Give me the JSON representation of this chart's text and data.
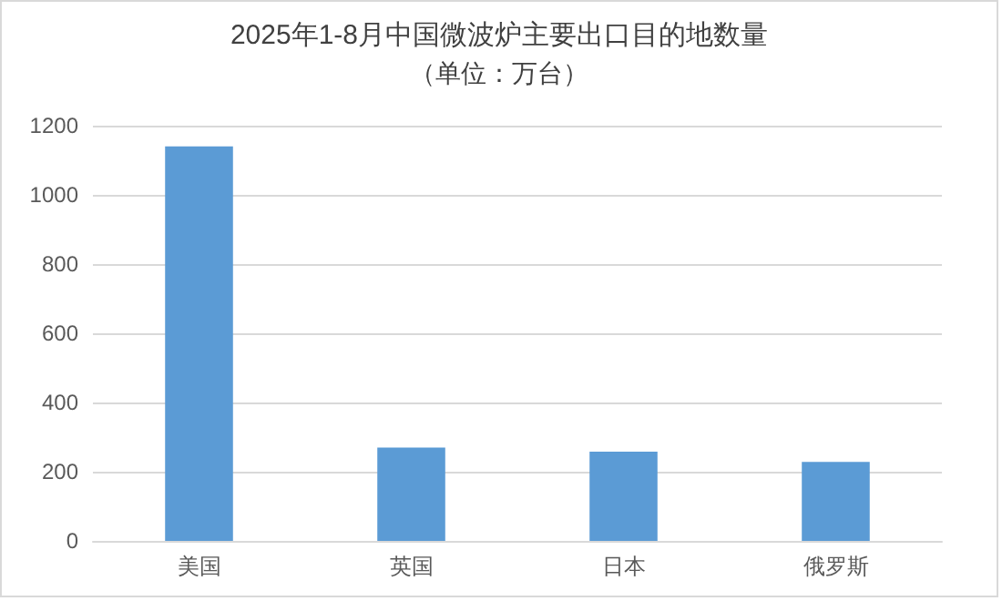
{
  "chart_data": {
    "type": "bar",
    "title": "2025年1-8月中国微波炉主要出口目的地数量",
    "subtitle": "（单位：万台）",
    "categories": [
      "美国",
      "英国",
      "日本",
      "俄罗斯"
    ],
    "values": [
      1140,
      270,
      258,
      228
    ],
    "color": "#5b9bd5",
    "ylim": [
      0,
      1200
    ],
    "yticks": [
      0,
      200,
      400,
      600,
      800,
      1000,
      1200
    ],
    "grid": "y"
  }
}
